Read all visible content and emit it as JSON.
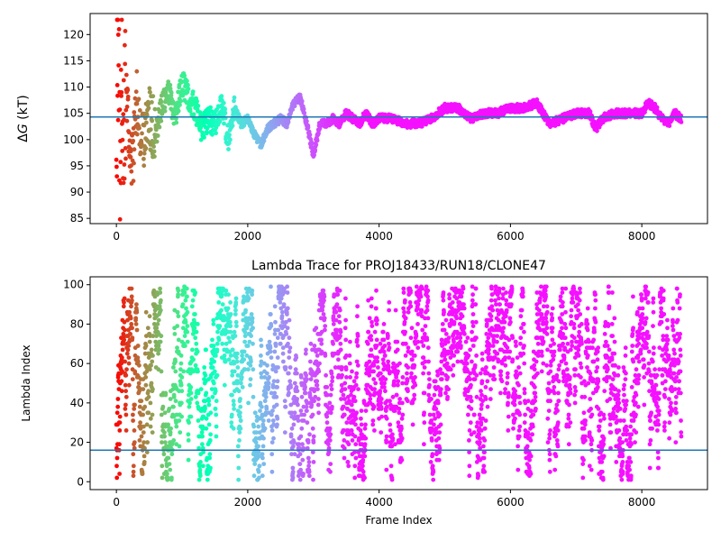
{
  "chart_data": [
    {
      "type": "scatter",
      "title": "",
      "xlabel": "",
      "ylabel_prefix": "Δ",
      "ylabel_var": "G",
      "ylabel_suffix": " (kT)",
      "xlim": [
        -400,
        9000
      ],
      "ylim": [
        84,
        124
      ],
      "xticks": [
        0,
        2000,
        4000,
        6000,
        8000
      ],
      "yticks": [
        85,
        90,
        95,
        100,
        105,
        110,
        115,
        120
      ],
      "reference_line": 104.3,
      "reference_line_color": "#1f77b4",
      "colormap": "rainbow (red at early frames → violet at late frames)",
      "frame_count": 8600,
      "series": [
        {
          "x": [
            0,
            20,
            40,
            60,
            80,
            100,
            150,
            200,
            250,
            300,
            400,
            500,
            600,
            700,
            800,
            900,
            1000,
            1100,
            1200,
            1300,
            1400,
            1500,
            1600,
            1700,
            1800,
            1900,
            2000,
            2100,
            2200,
            2300,
            2400,
            2500,
            2600,
            2700,
            2800,
            2900,
            3000,
            3100,
            3200,
            3300,
            3400,
            3500,
            3600,
            3700,
            3800,
            3900,
            4000,
            4200,
            4400,
            4600,
            4800,
            5000,
            5200,
            5400,
            5600,
            5800,
            6000,
            6200,
            6400,
            6600,
            6800,
            7000,
            7200,
            7300,
            7400,
            7600,
            7800,
            8000,
            8100,
            8200,
            8300,
            8400,
            8500,
            8600
          ],
          "y": [
            100,
            120,
            110,
            90,
            122,
            105,
            112,
            98,
            96,
            108,
            100,
            104,
            101,
            107,
            109,
            104,
            111,
            108,
            106,
            102,
            104,
            103,
            107,
            100,
            106,
            103,
            104,
            101,
            99,
            102,
            103,
            104,
            103,
            107,
            108,
            103,
            97,
            103,
            103,
            104,
            103,
            105,
            104,
            103,
            105,
            103,
            104,
            104,
            103,
            103,
            104,
            106,
            106,
            104,
            105,
            105,
            106,
            106,
            107,
            103,
            104,
            105,
            105,
            102,
            104,
            105,
            105,
            105,
            107,
            106,
            104,
            103,
            105,
            104
          ]
        }
      ]
    },
    {
      "type": "scatter",
      "title": "Lambda Trace for PROJ18433/RUN18/CLONE47",
      "xlabel": "Frame Index",
      "ylabel": "Lambda Index",
      "xlim": [
        -400,
        9000
      ],
      "ylim": [
        -4,
        104
      ],
      "xticks": [
        0,
        2000,
        4000,
        6000,
        8000
      ],
      "yticks": [
        0,
        20,
        40,
        60,
        80,
        100
      ],
      "reference_line": 16,
      "reference_line_color": "#1f77b4",
      "colormap": "rainbow (red at early frames → violet at late frames)",
      "frame_count": 8600,
      "series": [
        {
          "x": [
            0,
            25,
            50,
            75,
            100,
            150,
            200,
            300,
            400,
            500,
            600,
            800,
            1000,
            1200,
            1400,
            1600,
            1800,
            2000,
            2200,
            2400,
            2600,
            2800,
            3000,
            3200,
            3400,
            3600,
            3800,
            4000,
            4200,
            4400,
            4600,
            4800,
            5000,
            5200,
            5400,
            5600,
            5800,
            6000,
            6200,
            6400,
            6600,
            6800,
            7000,
            7200,
            7400,
            7600,
            7800,
            8000,
            8200,
            8400,
            8600
          ],
          "y": [
            5,
            98,
            45,
            20,
            70,
            10,
            90,
            55,
            30,
            75,
            60,
            15,
            85,
            40,
            5,
            95,
            35,
            65,
            25,
            80,
            50,
            10,
            90,
            45,
            70,
            20,
            60,
            85,
            30,
            55,
            95,
            15,
            40,
            75,
            65,
            5,
            90,
            50,
            25,
            80,
            35,
            60,
            95,
            20,
            45,
            70,
            10,
            85,
            55,
            30,
            65
          ]
        }
      ]
    }
  ]
}
